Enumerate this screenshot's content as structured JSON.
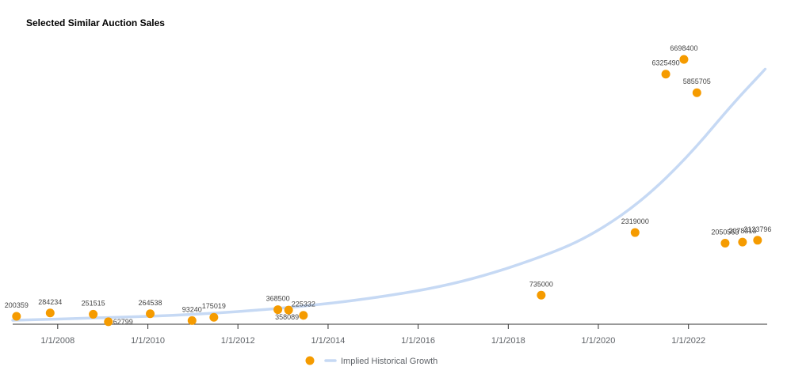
{
  "title": "Selected Similar Auction Sales",
  "colors": {
    "points": "#f59b00",
    "trend": "#c6d9f4",
    "axis": "#333333"
  },
  "chart_data": {
    "type": "scatter",
    "title": "Selected Similar Auction Sales",
    "xlabel": "",
    "ylabel": "",
    "x_type": "date",
    "xlim": [
      "2007-01-01",
      "2023-10-01"
    ],
    "ylim": [
      0,
      7400000
    ],
    "x_ticks": [
      "1/1/2008",
      "1/1/2010",
      "1/1/2012",
      "1/1/2014",
      "1/1/2016",
      "1/1/2018",
      "1/1/2020",
      "1/1/2022"
    ],
    "grid": false,
    "legend_position": "bottom",
    "series": [
      {
        "name": "",
        "type": "scatter",
        "points": [
          {
            "x": "2007-02-01",
            "y": 200359,
            "label": "200359"
          },
          {
            "x": "2007-11-01",
            "y": 284234,
            "label": "284234"
          },
          {
            "x": "2008-10-15",
            "y": 251515,
            "label": "251515"
          },
          {
            "x": "2009-02-15",
            "y": 62799,
            "label": "62799"
          },
          {
            "x": "2010-01-20",
            "y": 264538,
            "label": "264538"
          },
          {
            "x": "2010-12-25",
            "y": 93240,
            "label": "93240"
          },
          {
            "x": "2011-06-20",
            "y": 175019,
            "label": "175019"
          },
          {
            "x": "2012-11-20",
            "y": 368500,
            "label": "368500"
          },
          {
            "x": "2013-02-15",
            "y": 358089,
            "label": "358089"
          },
          {
            "x": "2013-06-15",
            "y": 225332,
            "label": "225332"
          },
          {
            "x": "2018-09-25",
            "y": 735000,
            "label": "735000"
          },
          {
            "x": "2020-10-25",
            "y": 2319000,
            "label": "2319000"
          },
          {
            "x": "2021-07-01",
            "y": 6325490,
            "label": "6325490"
          },
          {
            "x": "2021-11-25",
            "y": 6698400,
            "label": "6698400"
          },
          {
            "x": "2022-03-10",
            "y": 5855705,
            "label": "5855705"
          },
          {
            "x": "2022-10-25",
            "y": 2050563,
            "label": "2050563"
          },
          {
            "x": "2023-03-15",
            "y": 2078313,
            "label": "2078313"
          },
          {
            "x": "2023-07-15",
            "y": 2123796,
            "label": "2123796"
          }
        ]
      },
      {
        "name": "Implied Historical Growth",
        "type": "line",
        "points": [
          {
            "x": "2007-01-01",
            "y": 100000
          },
          {
            "x": "2009-01-01",
            "y": 160000
          },
          {
            "x": "2011-01-01",
            "y": 240000
          },
          {
            "x": "2013-01-01",
            "y": 400000
          },
          {
            "x": "2015-01-01",
            "y": 650000
          },
          {
            "x": "2017-01-01",
            "y": 1050000
          },
          {
            "x": "2019-01-01",
            "y": 1800000
          },
          {
            "x": "2020-01-01",
            "y": 2350000
          },
          {
            "x": "2021-01-01",
            "y": 3150000
          },
          {
            "x": "2022-01-01",
            "y": 4250000
          },
          {
            "x": "2023-01-01",
            "y": 5600000
          },
          {
            "x": "2023-09-15",
            "y": 6450000
          }
        ]
      }
    ]
  }
}
